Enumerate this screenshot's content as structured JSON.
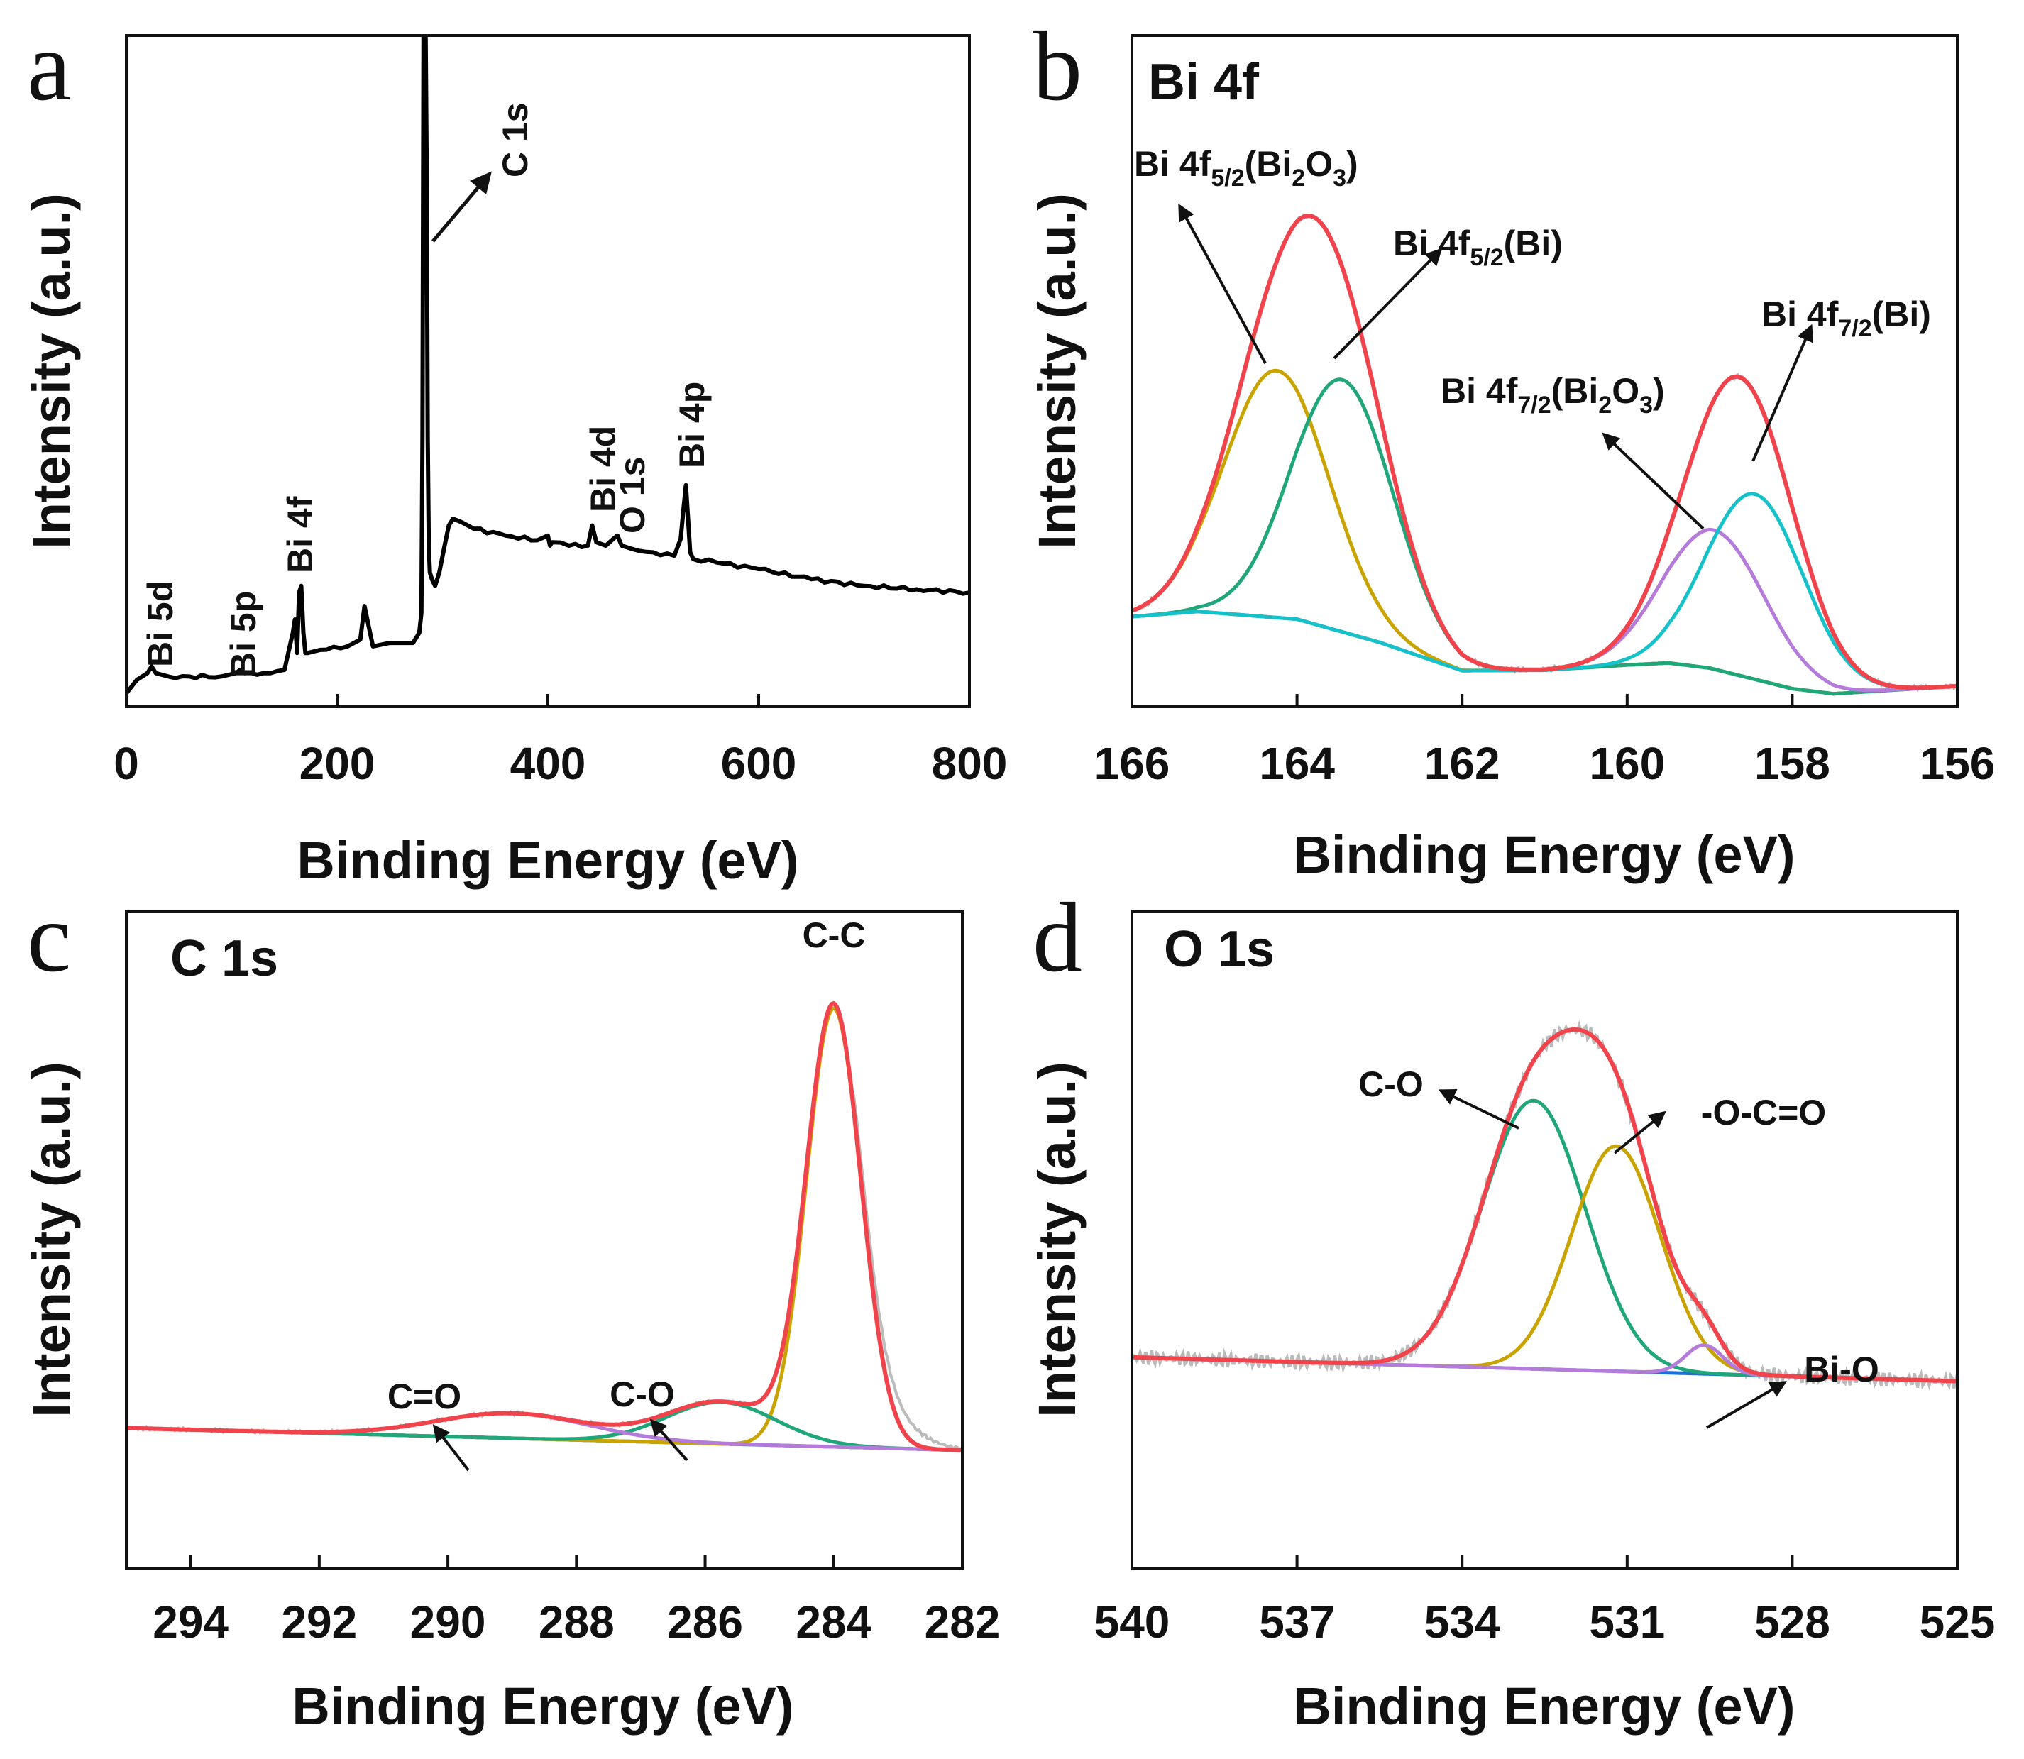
{
  "colors": {
    "envelope": "#F0434C",
    "raw": "#BBBBBB",
    "gold": "#C9A400",
    "green": "#1FA67A",
    "violet": "#B57BDA",
    "cyan": "#15C2C9",
    "baseline_blue": "#1E6FD8",
    "survey": "#000000"
  },
  "chart_data": [
    {
      "panel": "a",
      "type": "line",
      "xlabel": "Binding Energy (eV)",
      "ylabel": "Intensity (a.u.)",
      "xlim": [
        0,
        800
      ],
      "ylim": [
        0,
        100
      ],
      "x_ticks": [
        "0",
        "200",
        "400",
        "600",
        "800"
      ],
      "x_tick_values": [
        0,
        200,
        400,
        600,
        800
      ],
      "series": [
        {
          "name": "survey",
          "color": "#000000",
          "x": [
            0,
            10,
            20,
            24,
            28,
            40,
            60,
            90,
            104,
            108,
            112,
            130,
            150,
            158,
            160,
            162,
            164,
            166,
            168,
            170,
            172,
            190,
            210,
            222,
            226,
            230,
            234,
            250,
            262,
            272,
            278,
            280,
            281,
            282,
            283,
            284,
            285,
            286,
            287,
            288,
            290,
            293,
            297,
            302,
            306,
            310,
            318,
            330,
            360,
            390,
            400,
            402,
            404,
            420,
            438,
            442,
            446,
            455,
            462,
            466,
            470,
            480,
            500,
            520,
            526,
            529,
            531,
            533,
            535,
            538,
            560,
            600,
            650,
            700,
            750,
            800
          ],
          "y": [
            2,
            4,
            5,
            6,
            5,
            4.5,
            4.5,
            4.5,
            5,
            5.5,
            5,
            5,
            5.5,
            11,
            13,
            8,
            17,
            18,
            11,
            8,
            8,
            8.5,
            9,
            10,
            15,
            12,
            9,
            9.5,
            9.5,
            9.5,
            11,
            14,
            40,
            101,
            101,
            101,
            80,
            40,
            24,
            20,
            19,
            18,
            20,
            24,
            27,
            28,
            27.5,
            26.5,
            25.5,
            24.8,
            25.5,
            24,
            24.5,
            24,
            24,
            27,
            24.5,
            24,
            25,
            25.5,
            24,
            23.5,
            23,
            22.5,
            25,
            30,
            33,
            28,
            23,
            22,
            21.5,
            20.5,
            19,
            18,
            17.5,
            17
          ]
        }
      ],
      "annotations": [
        {
          "text": "Bi 5d"
        },
        {
          "text": "Bi 5p"
        },
        {
          "text": "Bi 4f"
        },
        {
          "text": "C 1s"
        },
        {
          "text": "Bi 4d"
        },
        {
          "text": "O 1s"
        },
        {
          "text": "Bi 4p"
        }
      ]
    },
    {
      "panel": "b",
      "type": "line",
      "title": "Bi 4f",
      "xlabel": "Binding Energy (eV)",
      "ylabel": "Intensity (a.u.)",
      "xlim": [
        166,
        156
      ],
      "ylim": [
        0,
        100
      ],
      "x_ticks": [
        "166",
        "164",
        "162",
        "160",
        "158",
        "156"
      ],
      "x_tick_values": [
        166,
        164,
        162,
        160,
        158,
        156
      ],
      "background": {
        "name": "background",
        "color": "#15C2C9",
        "points": [
          [
            166,
            16
          ],
          [
            165.2,
            17
          ],
          [
            164,
            15.5
          ],
          [
            163,
            11
          ],
          [
            162,
            5.5
          ],
          [
            161,
            5.6
          ],
          [
            160,
            6.6
          ],
          [
            159.5,
            7
          ],
          [
            159,
            6
          ],
          [
            158,
            2
          ],
          [
            157.5,
            1
          ],
          [
            156,
            2.5
          ]
        ]
      },
      "peaks": [
        {
          "name": "Bi 4f5/2(Bi2O3)",
          "center": 164.25,
          "height": 48,
          "fwhm": 1.5,
          "color": "#C9A400"
        },
        {
          "name": "Bi 4f5/2(Bi)",
          "center": 163.45,
          "height": 49,
          "fwhm": 1.45,
          "color": "#1FA67A"
        },
        {
          "name": "Bi 4f7/2(Bi2O3)",
          "center": 158.95,
          "height": 27,
          "fwhm": 1.45,
          "color": "#B57BDA"
        },
        {
          "name": "Bi 4f7/2(Bi)",
          "center": 158.45,
          "height": 36,
          "fwhm": 1.4,
          "color": "#15C2C9"
        }
      ],
      "envelope_color": "#F0434C",
      "raw_color": "#BBBBBB",
      "labels": {
        "bi2o3_52": {
          "main": "Bi 4f",
          "sub1": "5/2",
          "mid": "(Bi",
          "sub2": "2",
          "mid2": "O",
          "sub3": "3",
          "end": ")"
        },
        "bi_52": {
          "main": "Bi 4f",
          "sub1": "5/2",
          "end": "(Bi)"
        },
        "bi2o3_72": {
          "main": "Bi 4f",
          "sub1": "7/2",
          "mid": "(Bi",
          "sub2": "2",
          "mid2": "O",
          "sub3": "3",
          "end": ")"
        },
        "bi_72": {
          "main": "Bi 4f",
          "sub1": "7/2",
          "end": "(Bi)"
        }
      }
    },
    {
      "panel": "c",
      "type": "line",
      "title": "C 1s",
      "xlabel": "Binding Energy (eV)",
      "ylabel": "Intensity (a.u.)",
      "xlim": [
        295,
        282
      ],
      "ylim": [
        0,
        100
      ],
      "x_ticks": [
        "294",
        "292",
        "290",
        "288",
        "286",
        "284",
        "282"
      ],
      "x_tick_values": [
        294,
        292,
        290,
        288,
        286,
        284,
        282
      ],
      "background": {
        "name": "background",
        "color": "#1E6FD8",
        "points": [
          [
            295,
            14
          ],
          [
            282,
            10
          ]
        ]
      },
      "peaks": [
        {
          "name": "C-C",
          "center": 284.0,
          "height": 79,
          "fwhm": 1.0,
          "color": "#C9A400"
        },
        {
          "name": "C-O",
          "center": 285.75,
          "height": 7.5,
          "fwhm": 2.0,
          "color": "#1FA67A"
        },
        {
          "name": "C=O",
          "center": 289.0,
          "height": 4.5,
          "fwhm": 2.8,
          "color": "#B57BDA"
        }
      ],
      "envelope_color": "#F0434C",
      "raw_color": "#BBBBBB",
      "annotations": [
        {
          "text": "C-C"
        },
        {
          "text": "C-O"
        },
        {
          "text": "C=O"
        }
      ]
    },
    {
      "panel": "d",
      "type": "line",
      "title": "O 1s",
      "xlabel": "Binding Energy (eV)",
      "ylabel": "Intensity (a.u.)",
      "xlim": [
        540,
        525
      ],
      "ylim": [
        0,
        100
      ],
      "x_ticks": [
        "540",
        "537",
        "534",
        "531",
        "528",
        "525"
      ],
      "x_tick_values": [
        540,
        537,
        534,
        531,
        528,
        525
      ],
      "background": {
        "name": "background",
        "color": "#1E6FD8",
        "points": [
          [
            540,
            27
          ],
          [
            525,
            22
          ]
        ]
      },
      "peaks": [
        {
          "name": "C-O",
          "center": 532.7,
          "height": 56,
          "fwhm": 2.2,
          "color": "#1FA67A"
        },
        {
          "name": "-O-C=O",
          "center": 531.2,
          "height": 47,
          "fwhm": 1.9,
          "color": "#C9A400"
        },
        {
          "name": "Bi-O",
          "center": 529.6,
          "height": 6,
          "fwhm": 0.8,
          "color": "#B57BDA"
        }
      ],
      "envelope_color": "#F0434C",
      "raw_color": "#BBBBBB",
      "annotations": [
        {
          "text": "C-O"
        },
        {
          "text": "-O-C=O"
        },
        {
          "text": "Bi-O"
        }
      ]
    }
  ],
  "panels": {
    "a": {
      "letter": "a"
    },
    "b": {
      "letter": "b"
    },
    "c": {
      "letter": "c"
    },
    "d": {
      "letter": "d"
    }
  }
}
